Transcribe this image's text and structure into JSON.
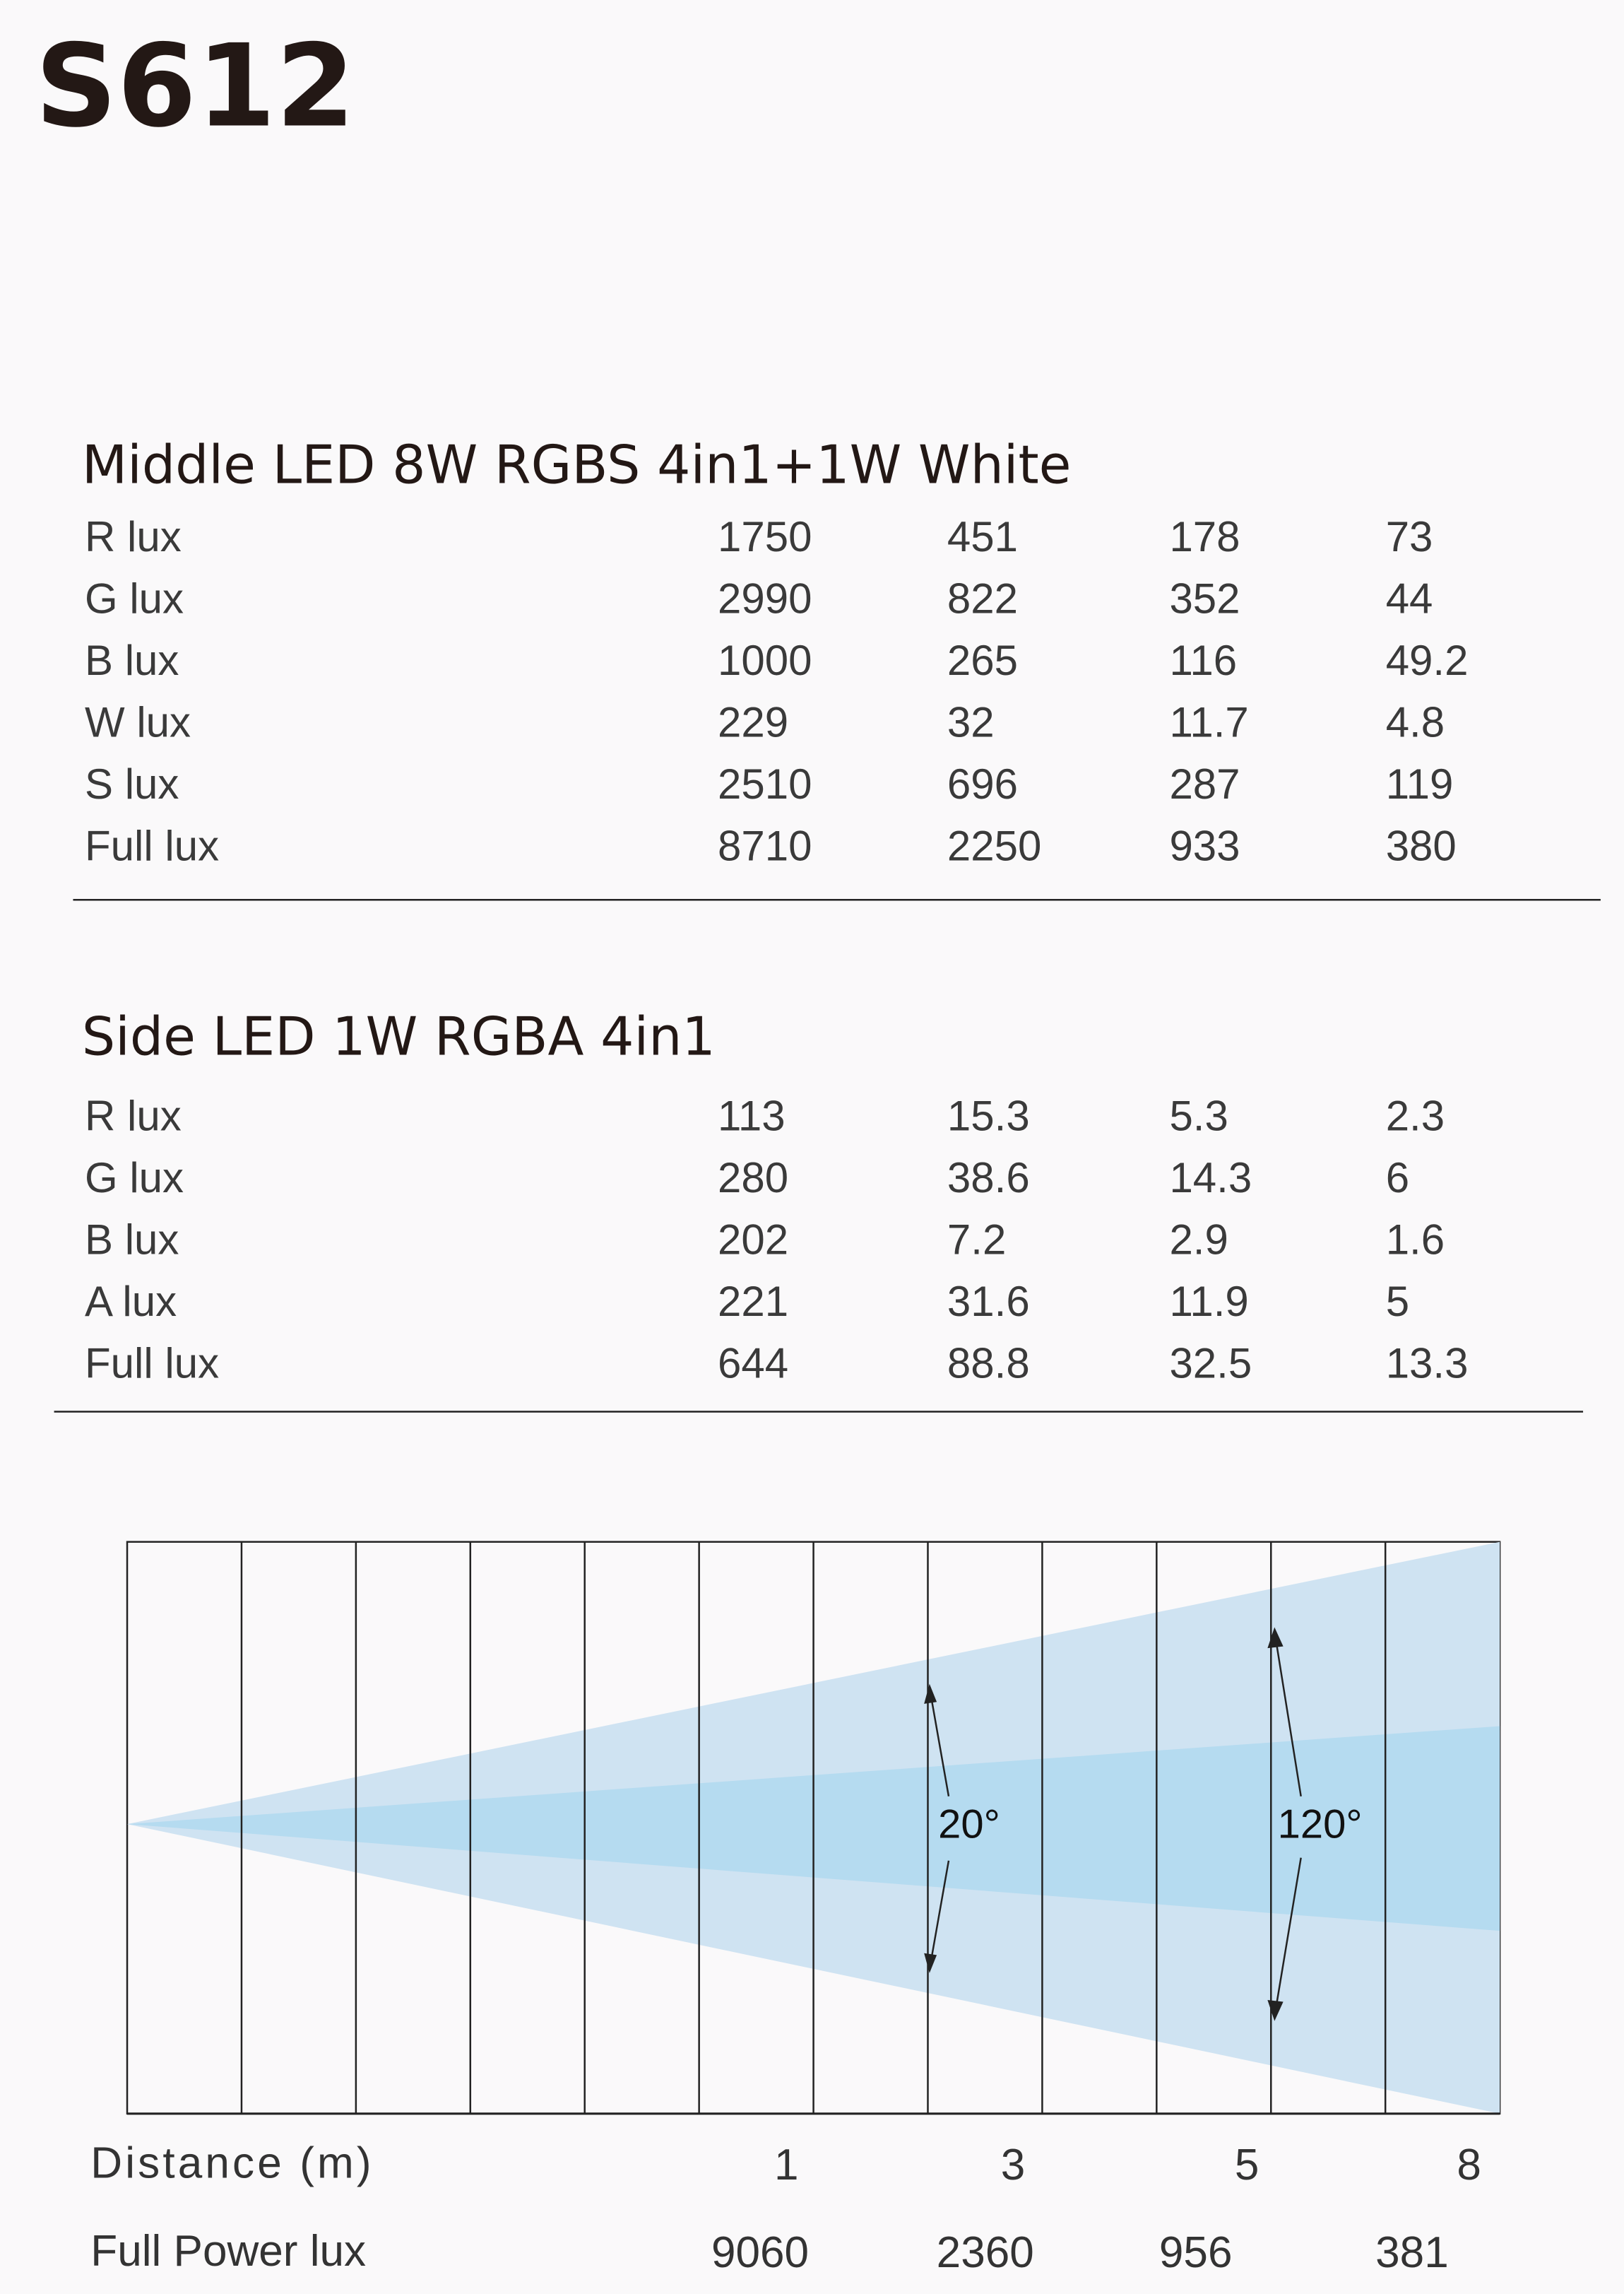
{
  "header": {
    "title": "S612"
  },
  "tables": [
    {
      "heading": "Middle LED 8W RGBS 4in1+1W White",
      "rows": [
        [
          "R lux",
          "1750",
          "451",
          "178",
          "73"
        ],
        [
          "G lux",
          "2990",
          "822",
          "352",
          "44"
        ],
        [
          "B lux",
          "1000",
          "265",
          "116",
          "49.2"
        ],
        [
          "W lux",
          "229",
          "32",
          "11.7",
          "4.8"
        ],
        [
          "S lux",
          "2510",
          "696",
          "287",
          "119"
        ],
        [
          "Full lux",
          "8710",
          "2250",
          "933",
          "380"
        ]
      ]
    },
    {
      "heading": "Side LED 1W RGBA 4in1",
      "rows": [
        [
          "R lux",
          "113",
          "15.3",
          "5.3",
          "2.3"
        ],
        [
          "G lux",
          "280",
          "38.6",
          "14.3",
          "6"
        ],
        [
          "B lux",
          "202",
          "7.2",
          "2.9",
          "1.6"
        ],
        [
          "A lux",
          "221",
          "31.6",
          "11.9",
          "5"
        ],
        [
          "Full lux",
          "644",
          "88.8",
          "32.5",
          "13.3"
        ]
      ]
    }
  ],
  "diagram": {
    "angles": [
      "20°",
      "120°"
    ],
    "distance_label": "Distance (m)",
    "distances": [
      "1",
      "3",
      "5",
      "8"
    ],
    "lux_label": "Full Power lux",
    "lux": [
      "9060",
      "2360",
      "956",
      "381"
    ]
  }
}
